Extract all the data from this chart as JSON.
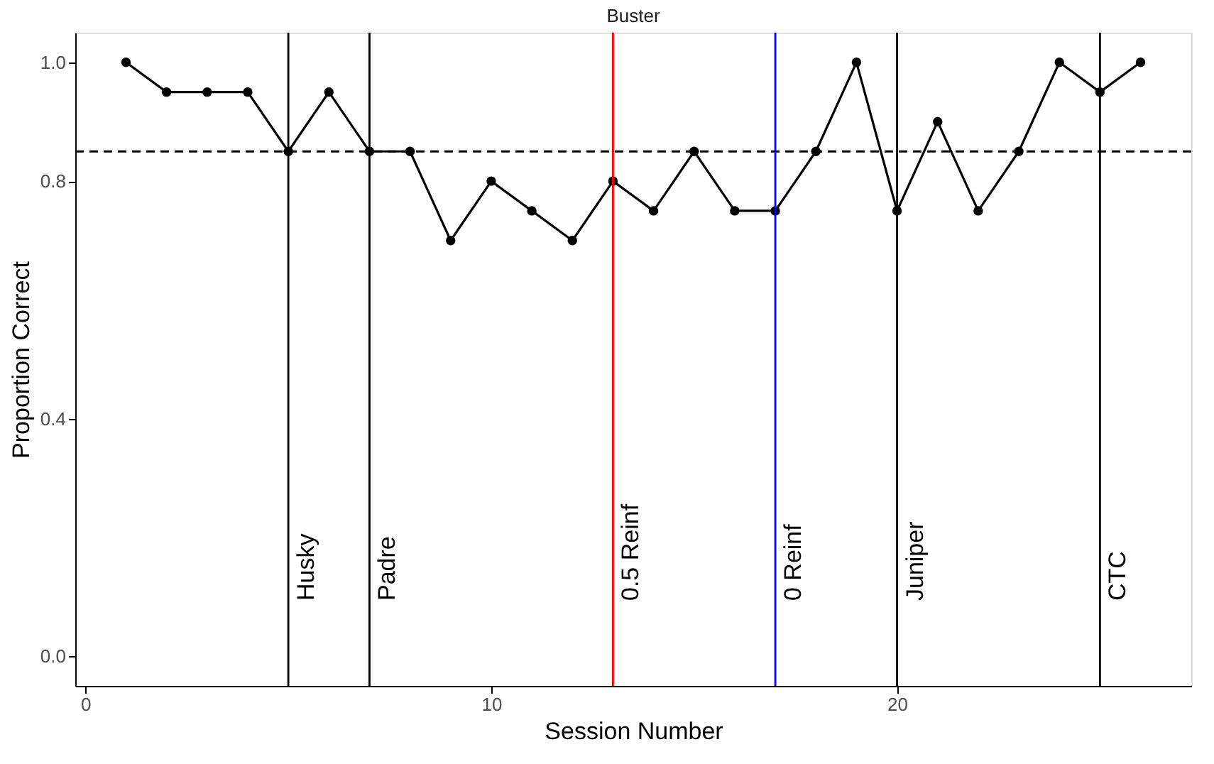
{
  "chart_data": {
    "type": "line",
    "title": "Buster",
    "xlabel": "Session Number",
    "ylabel": "Proportion Correct",
    "x": [
      1,
      2,
      3,
      4,
      5,
      6,
      7,
      8,
      9,
      10,
      11,
      12,
      13,
      14,
      15,
      16,
      17,
      18,
      19,
      20,
      21,
      22,
      23,
      24,
      25,
      26
    ],
    "series": [
      {
        "color": "#000000",
        "values": [
          1.0,
          0.95,
          0.95,
          0.95,
          0.85,
          0.95,
          0.85,
          0.85,
          0.7,
          0.8,
          0.75,
          0.7,
          0.8,
          0.75,
          0.85,
          0.75,
          0.75,
          0.85,
          1.0,
          0.75,
          0.9,
          0.75,
          0.85,
          1.0,
          0.95,
          1.0
        ]
      }
    ],
    "marker": "circle",
    "line_style": "solid",
    "grid": false,
    "xlim": [
      -0.25,
      27.25
    ],
    "xticks": [
      0,
      10,
      20
    ],
    "ylim": [
      -0.05,
      1.05
    ],
    "yticks": [
      {
        "value": 0,
        "label": "0.0"
      },
      0.4,
      0.8,
      {
        "value": 1,
        "label": "1.0"
      }
    ],
    "ref_lines": [
      {
        "axis": "y",
        "value": 0.85,
        "label": null,
        "color": "#000000",
        "line_style": "dashed"
      },
      {
        "axis": "x",
        "value": 5,
        "label": "Husky",
        "color": "#000000",
        "line_style": "solid"
      },
      {
        "axis": "x",
        "value": 7,
        "label": "Padre",
        "color": "#000000",
        "line_style": "solid"
      },
      {
        "axis": "x",
        "value": 13,
        "label": "0.5 Reinf",
        "color": "#ff0000",
        "line_style": "solid"
      },
      {
        "axis": "x",
        "value": 17,
        "label": "0 Reinf",
        "color": "#0000ff",
        "line_style": "solid"
      },
      {
        "axis": "x",
        "value": 20,
        "label": "Juniper",
        "color": "#000000",
        "line_style": "solid"
      },
      {
        "axis": "x",
        "value": 25,
        "label": "CTC",
        "color": "#000000",
        "line_style": "solid"
      }
    ]
  }
}
